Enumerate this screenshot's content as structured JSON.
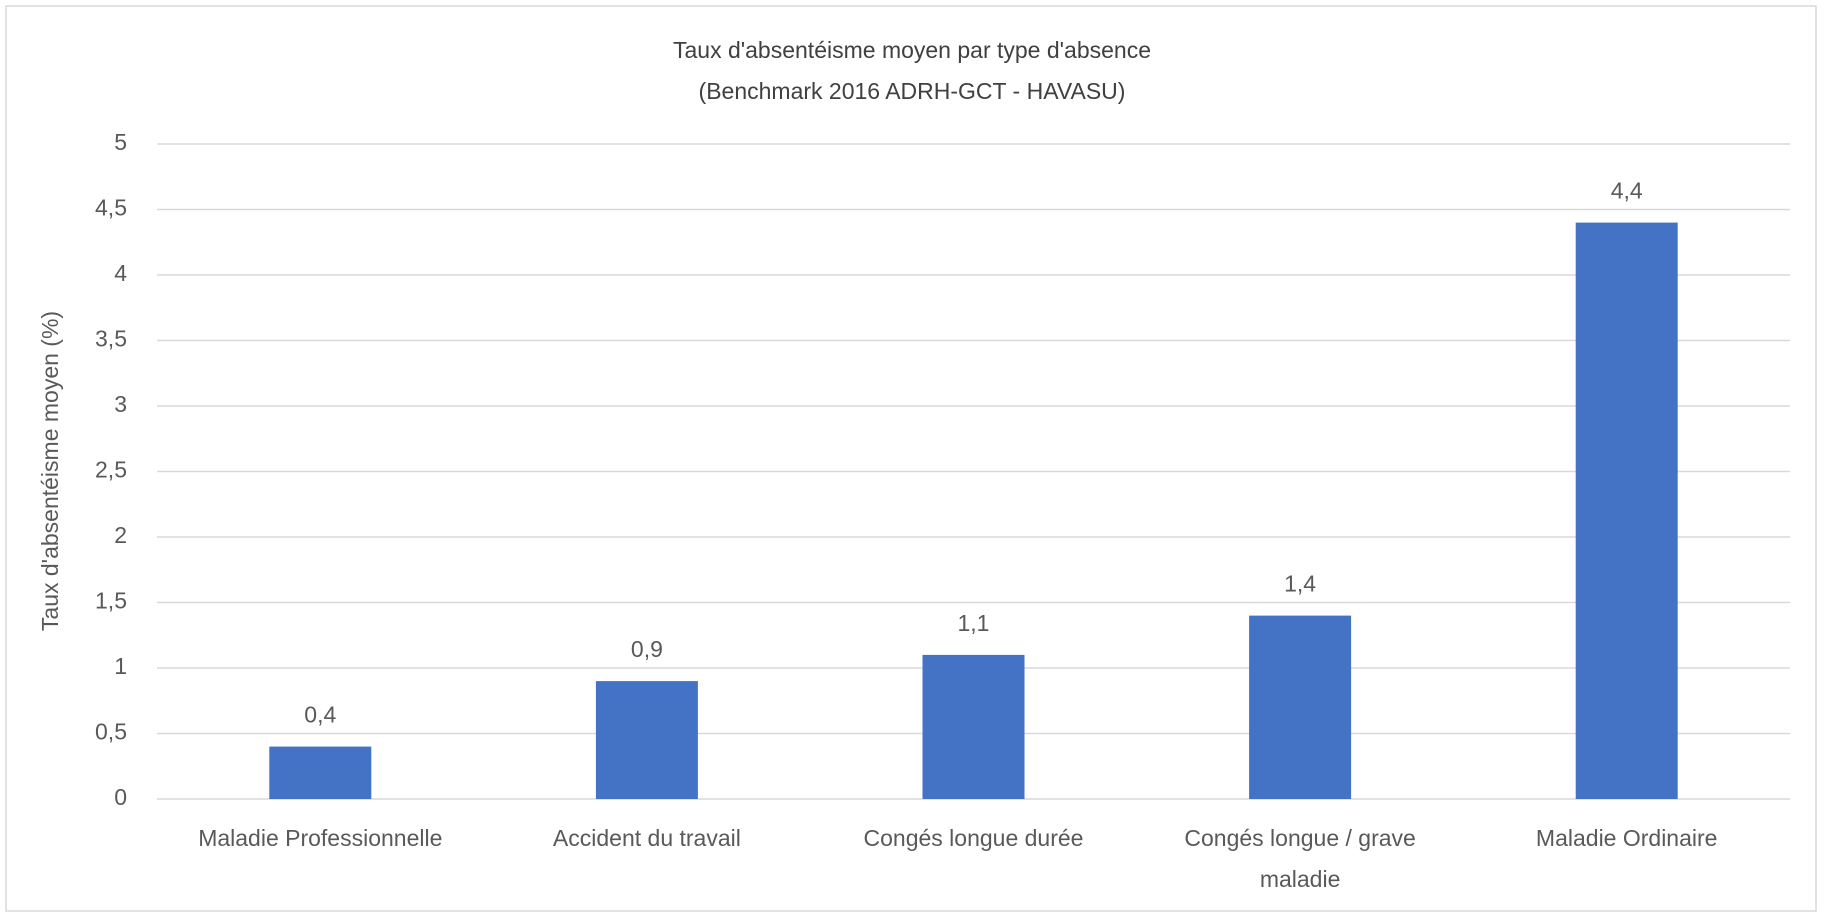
{
  "chart_data": {
    "type": "bar",
    "title": "Taux d'absentéisme  moyen par type d'absence",
    "subtitle": "(Benchmark 2016 ADRH-GCT - HAVASU)",
    "y_label": "Taux d'absentéisme  moyen (%)",
    "categories": [
      "Maladie Professionnelle",
      "Accident du travail",
      "Congés longue durée",
      "Congés longue / grave maladie",
      "Maladie Ordinaire"
    ],
    "values": [
      0.4,
      0.9,
      1.1,
      1.4,
      4.4
    ],
    "value_labels": [
      "0,4",
      "0,9",
      "1,1",
      "1,4",
      "4,4"
    ],
    "color": "#4472c4",
    "ylim": [
      0,
      5
    ],
    "yticks": [
      0,
      {
        "value": 0.5,
        "label": "0,5"
      },
      1,
      {
        "value": 1.5,
        "label": "1,5"
      },
      2,
      {
        "value": 2.5,
        "label": "2,5"
      },
      3,
      {
        "value": 3.5,
        "label": "3,5"
      },
      4,
      {
        "value": 4.5,
        "label": "4,5"
      },
      5
    ],
    "grid": true
  }
}
